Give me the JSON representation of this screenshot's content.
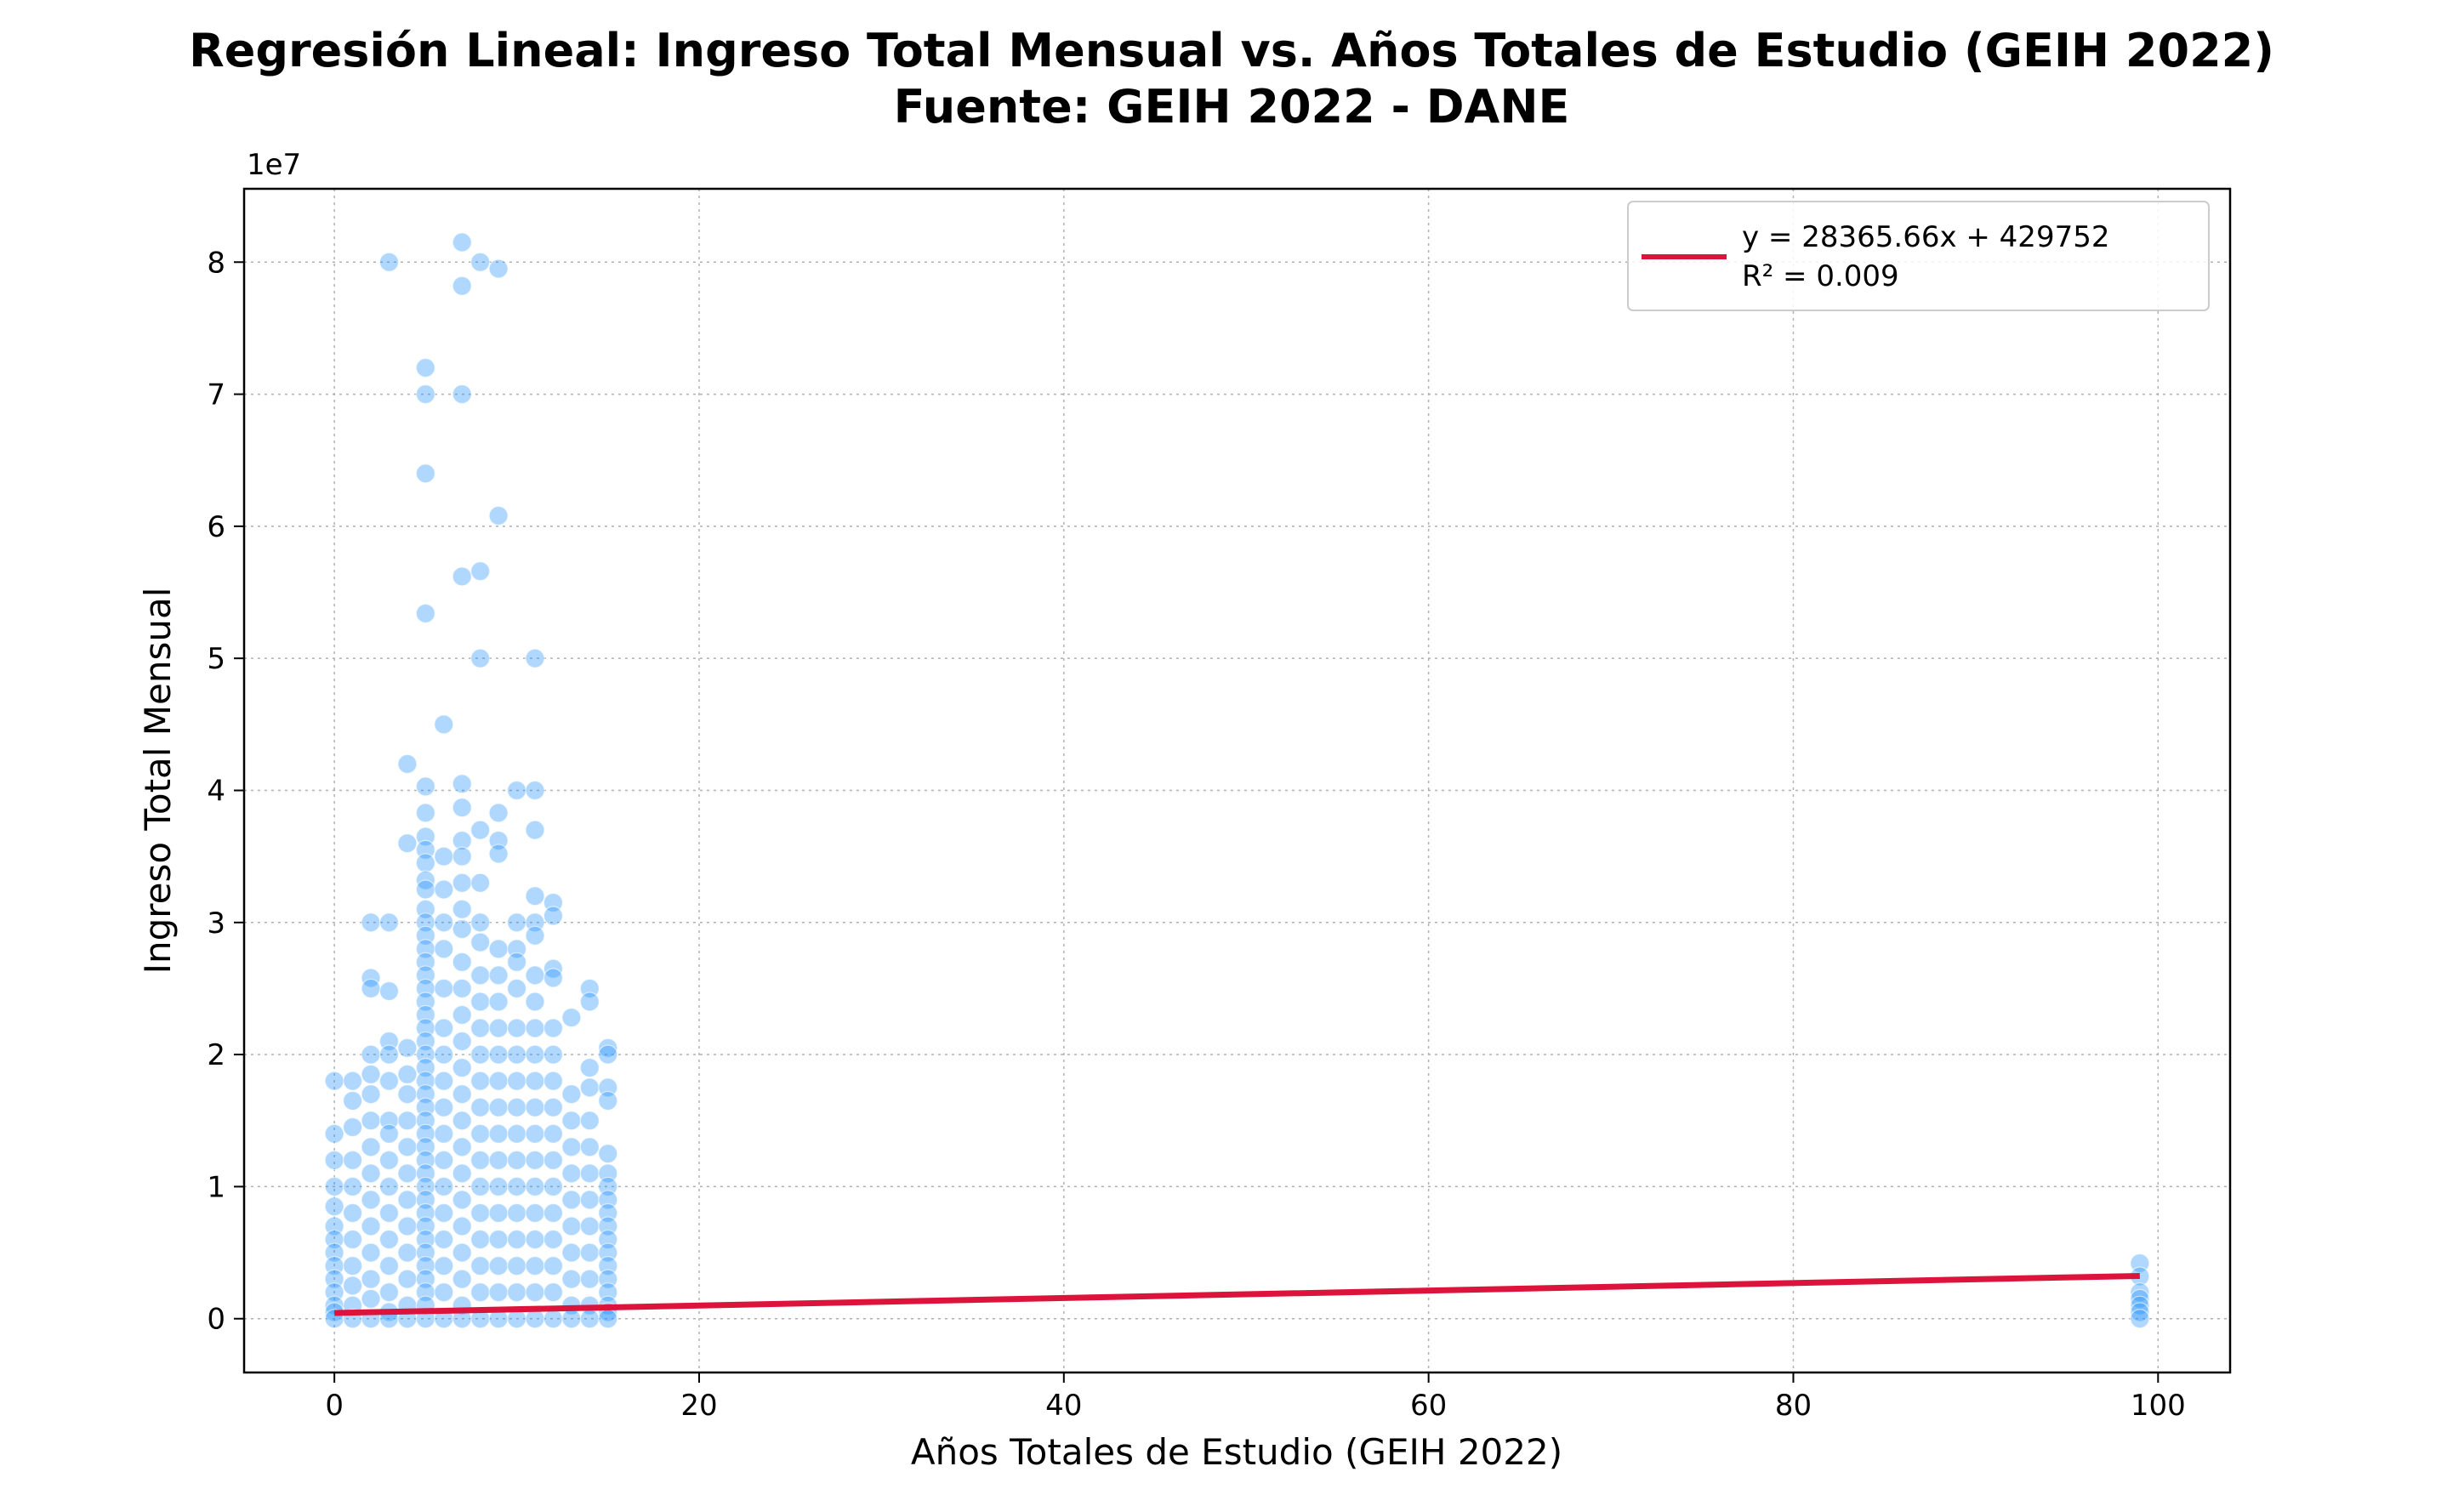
{
  "chart_data": {
    "type": "scatter",
    "title": "Regresión Lineal: Ingreso Total Mensual vs. Años Totales de Estudio (GEIH 2022)",
    "subtitle": "Fuente: GEIH 2022 - DANE",
    "xlabel": "Años Totales de Estudio (GEIH 2022)",
    "ylabel": "Ingreso Total Mensual",
    "y_offset_text": "1e7",
    "xlim": [
      -4.95,
      103.95
    ],
    "ylim": [
      -4074000,
      85554000
    ],
    "xticks": [
      0,
      20,
      40,
      60,
      80,
      100
    ],
    "xtick_labels": [
      "0",
      "20",
      "40",
      "60",
      "80",
      "100"
    ],
    "yticks": [
      0,
      10000000,
      20000000,
      30000000,
      40000000,
      50000000,
      60000000,
      70000000,
      80000000
    ],
    "ytick_labels": [
      "0",
      "1",
      "2",
      "3",
      "4",
      "5",
      "6",
      "7",
      "8"
    ],
    "grid": true,
    "legend_position": "top-right",
    "series": [
      {
        "kind": "scatter",
        "color": "#1e90ff",
        "alpha": 0.35,
        "points": [
          [
            0,
            18000000
          ],
          [
            0,
            14000000
          ],
          [
            0,
            12000000
          ],
          [
            0,
            10000000
          ],
          [
            0,
            8500000
          ],
          [
            0,
            7000000
          ],
          [
            0,
            6000000
          ],
          [
            0,
            5000000
          ],
          [
            0,
            4000000
          ],
          [
            0,
            3000000
          ],
          [
            0,
            2000000
          ],
          [
            0,
            1000000
          ],
          [
            0,
            500000
          ],
          [
            0,
            0
          ],
          [
            1,
            18000000
          ],
          [
            1,
            16500000
          ],
          [
            1,
            14500000
          ],
          [
            1,
            12000000
          ],
          [
            1,
            10000000
          ],
          [
            1,
            8000000
          ],
          [
            1,
            6000000
          ],
          [
            1,
            4000000
          ],
          [
            1,
            2500000
          ],
          [
            1,
            1000000
          ],
          [
            1,
            0
          ],
          [
            2,
            30000000
          ],
          [
            2,
            25800000
          ],
          [
            2,
            25000000
          ],
          [
            2,
            20000000
          ],
          [
            2,
            18500000
          ],
          [
            2,
            17000000
          ],
          [
            2,
            15000000
          ],
          [
            2,
            13000000
          ],
          [
            2,
            11000000
          ],
          [
            2,
            9000000
          ],
          [
            2,
            7000000
          ],
          [
            2,
            5000000
          ],
          [
            2,
            3000000
          ],
          [
            2,
            1500000
          ],
          [
            2,
            0
          ],
          [
            3,
            80000000
          ],
          [
            3,
            30000000
          ],
          [
            3,
            24800000
          ],
          [
            3,
            21000000
          ],
          [
            3,
            20000000
          ],
          [
            3,
            18000000
          ],
          [
            3,
            15000000
          ],
          [
            3,
            14000000
          ],
          [
            3,
            12000000
          ],
          [
            3,
            10000000
          ],
          [
            3,
            8000000
          ],
          [
            3,
            6000000
          ],
          [
            3,
            4000000
          ],
          [
            3,
            2000000
          ],
          [
            3,
            500000
          ],
          [
            3,
            0
          ],
          [
            4,
            42000000
          ],
          [
            4,
            36000000
          ],
          [
            4,
            20500000
          ],
          [
            4,
            18500000
          ],
          [
            4,
            17000000
          ],
          [
            4,
            15000000
          ],
          [
            4,
            13000000
          ],
          [
            4,
            11000000
          ],
          [
            4,
            9000000
          ],
          [
            4,
            7000000
          ],
          [
            4,
            5000000
          ],
          [
            4,
            3000000
          ],
          [
            4,
            1000000
          ],
          [
            4,
            0
          ],
          [
            5,
            72000000
          ],
          [
            5,
            70000000
          ],
          [
            5,
            64000000
          ],
          [
            5,
            53400000
          ],
          [
            5,
            40300000
          ],
          [
            5,
            38300000
          ],
          [
            5,
            36500000
          ],
          [
            5,
            35500000
          ],
          [
            5,
            34500000
          ],
          [
            5,
            33200000
          ],
          [
            5,
            32500000
          ],
          [
            5,
            31000000
          ],
          [
            5,
            30000000
          ],
          [
            5,
            29000000
          ],
          [
            5,
            28000000
          ],
          [
            5,
            27000000
          ],
          [
            5,
            26000000
          ],
          [
            5,
            25000000
          ],
          [
            5,
            24000000
          ],
          [
            5,
            23000000
          ],
          [
            5,
            22000000
          ],
          [
            5,
            21000000
          ],
          [
            5,
            20000000
          ],
          [
            5,
            19000000
          ],
          [
            5,
            18000000
          ],
          [
            5,
            17000000
          ],
          [
            5,
            16000000
          ],
          [
            5,
            15000000
          ],
          [
            5,
            14000000
          ],
          [
            5,
            13000000
          ],
          [
            5,
            12000000
          ],
          [
            5,
            11000000
          ],
          [
            5,
            10000000
          ],
          [
            5,
            9000000
          ],
          [
            5,
            8000000
          ],
          [
            5,
            7000000
          ],
          [
            5,
            6000000
          ],
          [
            5,
            5000000
          ],
          [
            5,
            4000000
          ],
          [
            5,
            3000000
          ],
          [
            5,
            2000000
          ],
          [
            5,
            1000000
          ],
          [
            5,
            0
          ],
          [
            6,
            45000000
          ],
          [
            6,
            35000000
          ],
          [
            6,
            32500000
          ],
          [
            6,
            30000000
          ],
          [
            6,
            28000000
          ],
          [
            6,
            25000000
          ],
          [
            6,
            22000000
          ],
          [
            6,
            20000000
          ],
          [
            6,
            18000000
          ],
          [
            6,
            16000000
          ],
          [
            6,
            14000000
          ],
          [
            6,
            12000000
          ],
          [
            6,
            10000000
          ],
          [
            6,
            8000000
          ],
          [
            6,
            6000000
          ],
          [
            6,
            4000000
          ],
          [
            6,
            2000000
          ],
          [
            6,
            0
          ],
          [
            7,
            81500000
          ],
          [
            7,
            78200000
          ],
          [
            7,
            70000000
          ],
          [
            7,
            56200000
          ],
          [
            7,
            40500000
          ],
          [
            7,
            38700000
          ],
          [
            7,
            36200000
          ],
          [
            7,
            35000000
          ],
          [
            7,
            33000000
          ],
          [
            7,
            31000000
          ],
          [
            7,
            29500000
          ],
          [
            7,
            27000000
          ],
          [
            7,
            25000000
          ],
          [
            7,
            23000000
          ],
          [
            7,
            21000000
          ],
          [
            7,
            19000000
          ],
          [
            7,
            17000000
          ],
          [
            7,
            15000000
          ],
          [
            7,
            13000000
          ],
          [
            7,
            11000000
          ],
          [
            7,
            9000000
          ],
          [
            7,
            7000000
          ],
          [
            7,
            5000000
          ],
          [
            7,
            3000000
          ],
          [
            7,
            1000000
          ],
          [
            7,
            0
          ],
          [
            8,
            80000000
          ],
          [
            8,
            56600000
          ],
          [
            8,
            50000000
          ],
          [
            8,
            37000000
          ],
          [
            8,
            33000000
          ],
          [
            8,
            30000000
          ],
          [
            8,
            28500000
          ],
          [
            8,
            26000000
          ],
          [
            8,
            24000000
          ],
          [
            8,
            22000000
          ],
          [
            8,
            20000000
          ],
          [
            8,
            18000000
          ],
          [
            8,
            16000000
          ],
          [
            8,
            14000000
          ],
          [
            8,
            12000000
          ],
          [
            8,
            10000000
          ],
          [
            8,
            8000000
          ],
          [
            8,
            6000000
          ],
          [
            8,
            4000000
          ],
          [
            8,
            2000000
          ],
          [
            8,
            0
          ],
          [
            9,
            79500000
          ],
          [
            9,
            60800000
          ],
          [
            9,
            38300000
          ],
          [
            9,
            36200000
          ],
          [
            9,
            35200000
          ],
          [
            9,
            28000000
          ],
          [
            9,
            26000000
          ],
          [
            9,
            24000000
          ],
          [
            9,
            22000000
          ],
          [
            9,
            20000000
          ],
          [
            9,
            18000000
          ],
          [
            9,
            16000000
          ],
          [
            9,
            14000000
          ],
          [
            9,
            12000000
          ],
          [
            9,
            10000000
          ],
          [
            9,
            8000000
          ],
          [
            9,
            6000000
          ],
          [
            9,
            4000000
          ],
          [
            9,
            2000000
          ],
          [
            9,
            0
          ],
          [
            10,
            40000000
          ],
          [
            10,
            30000000
          ],
          [
            10,
            28000000
          ],
          [
            10,
            27000000
          ],
          [
            10,
            25000000
          ],
          [
            10,
            22000000
          ],
          [
            10,
            20000000
          ],
          [
            10,
            18000000
          ],
          [
            10,
            16000000
          ],
          [
            10,
            14000000
          ],
          [
            10,
            12000000
          ],
          [
            10,
            10000000
          ],
          [
            10,
            8000000
          ],
          [
            10,
            6000000
          ],
          [
            10,
            4000000
          ],
          [
            10,
            2000000
          ],
          [
            10,
            0
          ],
          [
            11,
            50000000
          ],
          [
            11,
            40000000
          ],
          [
            11,
            37000000
          ],
          [
            11,
            32000000
          ],
          [
            11,
            30000000
          ],
          [
            11,
            29000000
          ],
          [
            11,
            26000000
          ],
          [
            11,
            24000000
          ],
          [
            11,
            22000000
          ],
          [
            11,
            20000000
          ],
          [
            11,
            18000000
          ],
          [
            11,
            16000000
          ],
          [
            11,
            14000000
          ],
          [
            11,
            12000000
          ],
          [
            11,
            10000000
          ],
          [
            11,
            8000000
          ],
          [
            11,
            6000000
          ],
          [
            11,
            4000000
          ],
          [
            11,
            2000000
          ],
          [
            11,
            0
          ],
          [
            12,
            31500000
          ],
          [
            12,
            30500000
          ],
          [
            12,
            26500000
          ],
          [
            12,
            25800000
          ],
          [
            12,
            22000000
          ],
          [
            12,
            20000000
          ],
          [
            12,
            18000000
          ],
          [
            12,
            16000000
          ],
          [
            12,
            14000000
          ],
          [
            12,
            12000000
          ],
          [
            12,
            10000000
          ],
          [
            12,
            8000000
          ],
          [
            12,
            6000000
          ],
          [
            12,
            4000000
          ],
          [
            12,
            2000000
          ],
          [
            12,
            0
          ],
          [
            13,
            22800000
          ],
          [
            13,
            17000000
          ],
          [
            13,
            15000000
          ],
          [
            13,
            13000000
          ],
          [
            13,
            11000000
          ],
          [
            13,
            9000000
          ],
          [
            13,
            7000000
          ],
          [
            13,
            5000000
          ],
          [
            13,
            3000000
          ],
          [
            13,
            1000000
          ],
          [
            13,
            0
          ],
          [
            14,
            25000000
          ],
          [
            14,
            24000000
          ],
          [
            14,
            19000000
          ],
          [
            14,
            17500000
          ],
          [
            14,
            15000000
          ],
          [
            14,
            13000000
          ],
          [
            14,
            11000000
          ],
          [
            14,
            9000000
          ],
          [
            14,
            7000000
          ],
          [
            14,
            5000000
          ],
          [
            14,
            3000000
          ],
          [
            14,
            1000000
          ],
          [
            14,
            0
          ],
          [
            15,
            20500000
          ],
          [
            15,
            20000000
          ],
          [
            15,
            17500000
          ],
          [
            15,
            16500000
          ],
          [
            15,
            12500000
          ],
          [
            15,
            11000000
          ],
          [
            15,
            10000000
          ],
          [
            15,
            9000000
          ],
          [
            15,
            8000000
          ],
          [
            15,
            7000000
          ],
          [
            15,
            6000000
          ],
          [
            15,
            5000000
          ],
          [
            15,
            4000000
          ],
          [
            15,
            3000000
          ],
          [
            15,
            2000000
          ],
          [
            15,
            1000000
          ],
          [
            15,
            500000
          ],
          [
            15,
            0
          ],
          [
            99,
            4200000
          ],
          [
            99,
            3200000
          ],
          [
            99,
            2000000
          ],
          [
            99,
            1500000
          ],
          [
            99,
            1000000
          ],
          [
            99,
            500000
          ],
          [
            99,
            0
          ]
        ]
      },
      {
        "kind": "line",
        "name": "y = 28365.66x + 429752",
        "r2_label": "R² = 0.009",
        "color": "#dc143c",
        "x": [
          0,
          99
        ],
        "y": [
          429752,
          3237952
        ]
      }
    ]
  }
}
